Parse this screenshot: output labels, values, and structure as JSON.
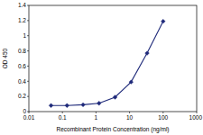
{
  "chart_data": {
    "type": "line",
    "x_label": "Recombinant Protein Concentration (ng/ml)",
    "y_label": "OD 450",
    "x": [
      0.0457,
      0.137,
      0.412,
      1.23,
      3.7,
      11.1,
      33.3,
      100
    ],
    "values": [
      0.08,
      0.08,
      0.09,
      0.11,
      0.19,
      0.39,
      0.77,
      1.19
    ],
    "color": "#1f2a7a",
    "marker": "diamond",
    "line_style": "solid",
    "log": "x",
    "grid": false,
    "xlim": [
      0.01,
      1000
    ],
    "xticks": [
      0.01,
      0.1,
      1,
      10,
      100,
      1000
    ],
    "ylim": [
      0,
      1.4
    ],
    "yticks": [
      0,
      0.2,
      0.4,
      0.6,
      0.8,
      1,
      1.2,
      1.4
    ]
  }
}
